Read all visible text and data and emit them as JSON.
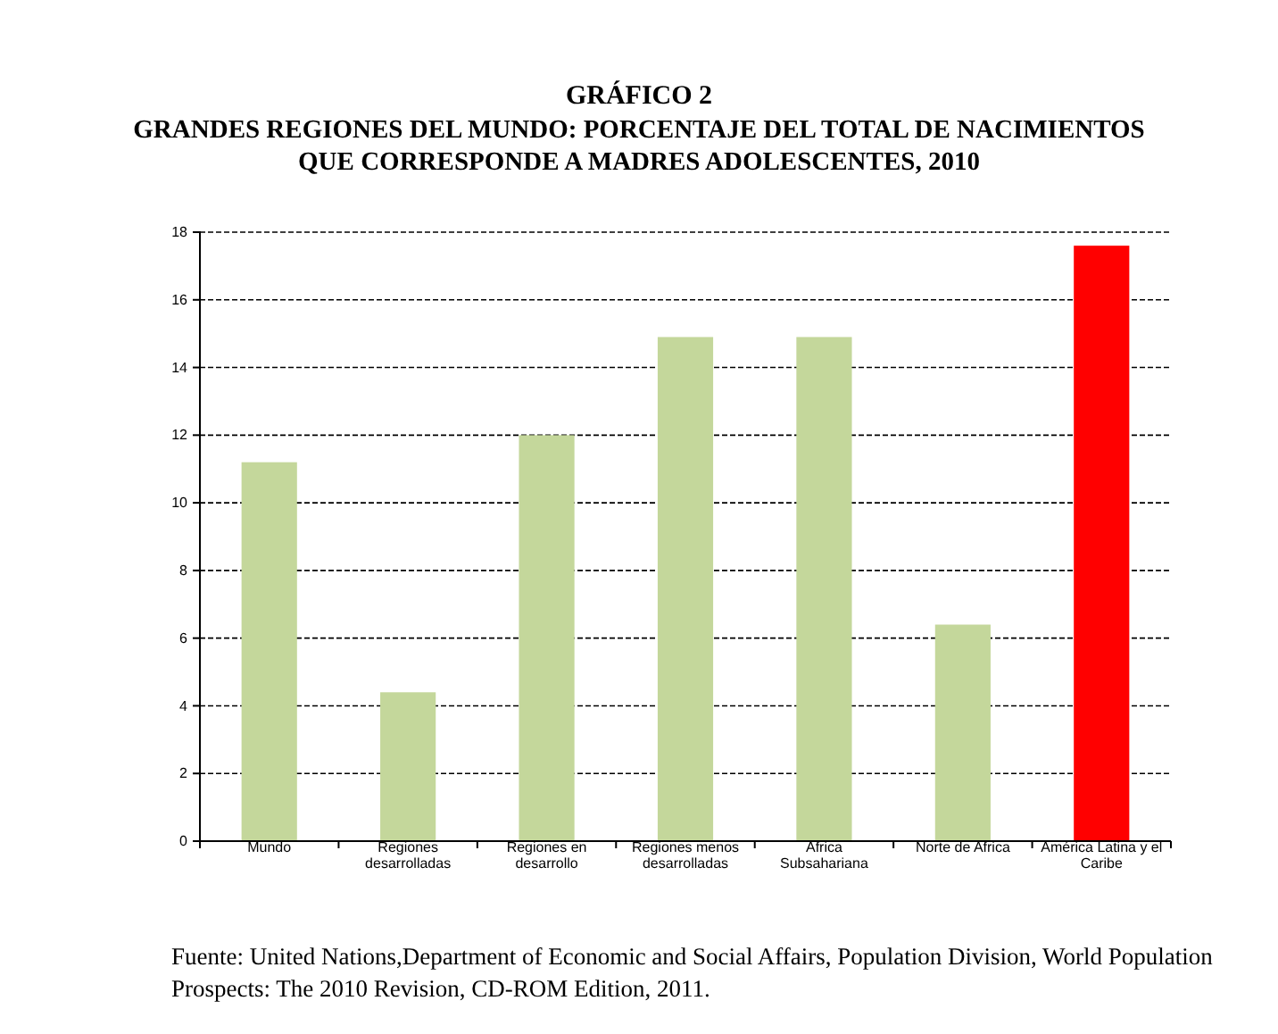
{
  "chart_data": {
    "type": "bar",
    "title": "GRÁFICO 2",
    "subtitle": "GRANDES REGIONES DEL MUNDO: PORCENTAJE DEL TOTAL DE NACIMIENTOS QUE CORRESPONDE A MADRES ADOLESCENTES, 2010",
    "categories": [
      "Mundo",
      "Regiones desarrolladas",
      "Regiones en desarrollo",
      "Regiones menos desarrolladas",
      "Africa Subsahariana",
      "Norte de Africa",
      "América Latina y el Caribe"
    ],
    "values": [
      11.2,
      4.4,
      12.0,
      14.9,
      14.9,
      6.4,
      17.6
    ],
    "colors": [
      "#c4d79b",
      "#c4d79b",
      "#c4d79b",
      "#c4d79b",
      "#c4d79b",
      "#c4d79b",
      "#ff0000"
    ],
    "ylim": [
      0,
      18
    ],
    "yticks": [
      0,
      2,
      4,
      6,
      8,
      10,
      12,
      14,
      16,
      18
    ],
    "grid": "y",
    "annotations": [
      "Fuente: United Nations,Department of Economic and Social Affairs, Population Division, World Population Prospects: The 2010 Revision, CD-ROM Edition, 2011."
    ]
  }
}
